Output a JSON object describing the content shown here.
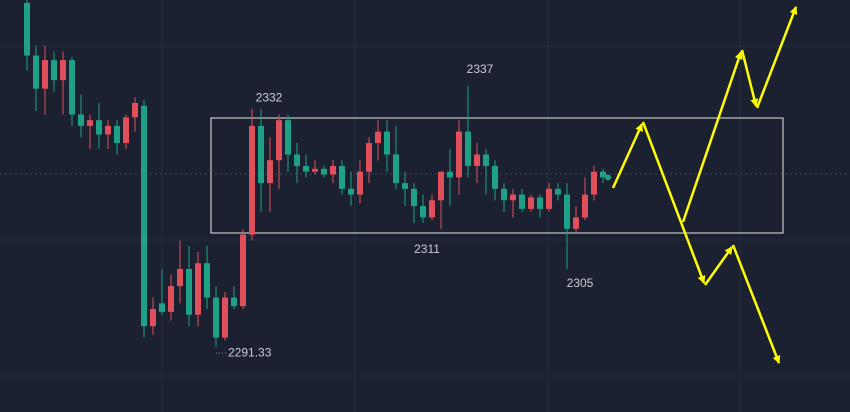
{
  "chart_data": {
    "type": "candlestick",
    "ylim": [
      2280,
      2352
    ],
    "up_color": "#e0505c",
    "down_color": "#1fa187",
    "series": [
      {
        "open": [
          2351.5,
          2342.3,
          2336.5,
          2341.5,
          2338,
          2341.5,
          2332,
          2330,
          2331,
          2328.5,
          2330,
          2327,
          2331.5,
          2333.5,
          2295,
          2299,
          2297.5,
          2302,
          2305,
          2297,
          2306,
          2300,
          2293,
          2300,
          2298.5,
          2311,
          2330,
          2320,
          2324,
          2331,
          2325,
          2323,
          2322,
          2322.5,
          2321.5,
          2323,
          2319,
          2318,
          2322,
          2327,
          2329,
          2325,
          2320,
          2319,
          2316,
          2314,
          2317,
          2322,
          2321,
          2329,
          2323,
          2325,
          2323,
          2319,
          2317,
          2318,
          2315.5,
          2317.5,
          2315.5,
          2319,
          2318,
          2312,
          2314,
          2318,
          2322
        ],
        "high": [
          2352,
          2344,
          2344,
          2343,
          2343,
          2342,
          2335.5,
          2332,
          2334,
          2331,
          2331,
          2332,
          2335,
          2334.5,
          2300,
          2305,
          2304,
          2310,
          2309,
          2308,
          2309,
          2302,
          2301,
          2302,
          2312,
          2333,
          2333,
          2328,
          2332,
          2332,
          2327,
          2325,
          2324,
          2323,
          2324,
          2324,
          2322,
          2324,
          2328,
          2331,
          2331,
          2330,
          2322,
          2320,
          2318,
          2318,
          2322,
          2326,
          2331,
          2337,
          2327,
          2326,
          2324,
          2320,
          2319,
          2319,
          2318,
          2318,
          2320,
          2320,
          2320,
          2316,
          2321,
          2323,
          2322.5
        ],
        "low": [
          2339.7,
          2332.6,
          2332,
          2336,
          2332,
          2330,
          2328,
          2326,
          2326,
          2326,
          2325,
          2326,
          2329,
          2293,
          2293.5,
          2297,
          2296,
          2299,
          2295,
          2295,
          2298,
          2291.33,
          2292.5,
          2298,
          2298,
          2310,
          2315,
          2315,
          2319,
          2322,
          2320,
          2321,
          2321.5,
          2321,
          2320,
          2318,
          2316,
          2316.5,
          2320,
          2324,
          2322,
          2319,
          2316,
          2313,
          2313,
          2313.5,
          2312,
          2316,
          2318,
          2321,
          2320,
          2318,
          2317,
          2315,
          2314,
          2315,
          2315,
          2314,
          2315,
          2317,
          2305,
          2311.5,
          2313.5,
          2317,
          2320
        ],
        "close": [
          2342.3,
          2336.5,
          2341.5,
          2338,
          2341.5,
          2332,
          2330,
          2331,
          2328.5,
          2330,
          2327,
          2331.5,
          2334,
          2295,
          2298,
          2297.5,
          2302,
          2305,
          2297,
          2306,
          2300,
          2293,
          2300,
          2298.5,
          2311,
          2330,
          2320,
          2324,
          2331,
          2325,
          2323,
          2322,
          2322.5,
          2321.5,
          2323,
          2319,
          2318,
          2322,
          2327,
          2329,
          2325,
          2320,
          2319,
          2316,
          2314,
          2317,
          2322,
          2321,
          2329,
          2323,
          2325,
          2323,
          2319,
          2317,
          2318,
          2315.5,
          2317.5,
          2315.5,
          2319,
          2318,
          2312,
          2314,
          2318,
          2322,
          2321
        ]
      }
    ],
    "annotations": [
      2332,
      2337,
      2311,
      2305,
      2291.33
    ]
  }
}
